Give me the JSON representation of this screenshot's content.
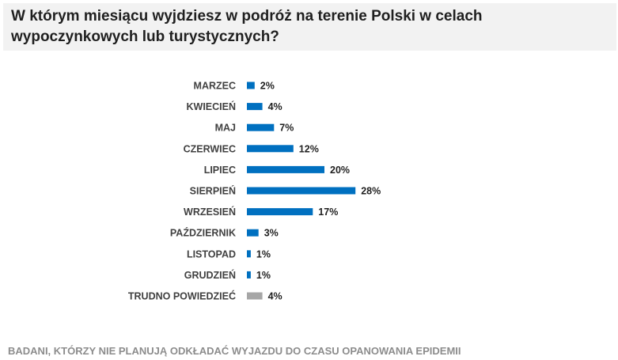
{
  "title": "W którym miesiącu wyjdziesz w podróż na terenie Polski w celach wypoczynkowych lub turystycznych?",
  "footer": "BADANI, KTÓRZY NIE PLANUJĄ ODKŁADAĆ WYJAZDU DO CZASU OPANOWANIA EPIDEMII",
  "colors": {
    "primary_bar": "#0070c0",
    "other_bar": "#a6a6a6",
    "title_background": "#f2f2f2",
    "footer_text": "#8c8c8c"
  },
  "chart_data": {
    "type": "bar",
    "orientation": "horizontal",
    "title": "",
    "xlabel": "",
    "ylabel": "",
    "grid": false,
    "legend": "none",
    "value_suffix": "%",
    "xlim": [
      0,
      28
    ],
    "categories": [
      "MARZEC",
      "KWIECIEŃ",
      "MAJ",
      "CZERWIEC",
      "LIPIEC",
      "SIERPIEŃ",
      "WRZESIEŃ",
      "PAŹDZIERNIK",
      "LISTOPAD",
      "GRUDZIEŃ",
      "TRUDNO POWIEDZIEĆ"
    ],
    "values": [
      2,
      4,
      7,
      12,
      20,
      28,
      17,
      3,
      1,
      1,
      4
    ],
    "bar_colors": [
      "#0070c0",
      "#0070c0",
      "#0070c0",
      "#0070c0",
      "#0070c0",
      "#0070c0",
      "#0070c0",
      "#0070c0",
      "#0070c0",
      "#0070c0",
      "#a6a6a6"
    ]
  }
}
